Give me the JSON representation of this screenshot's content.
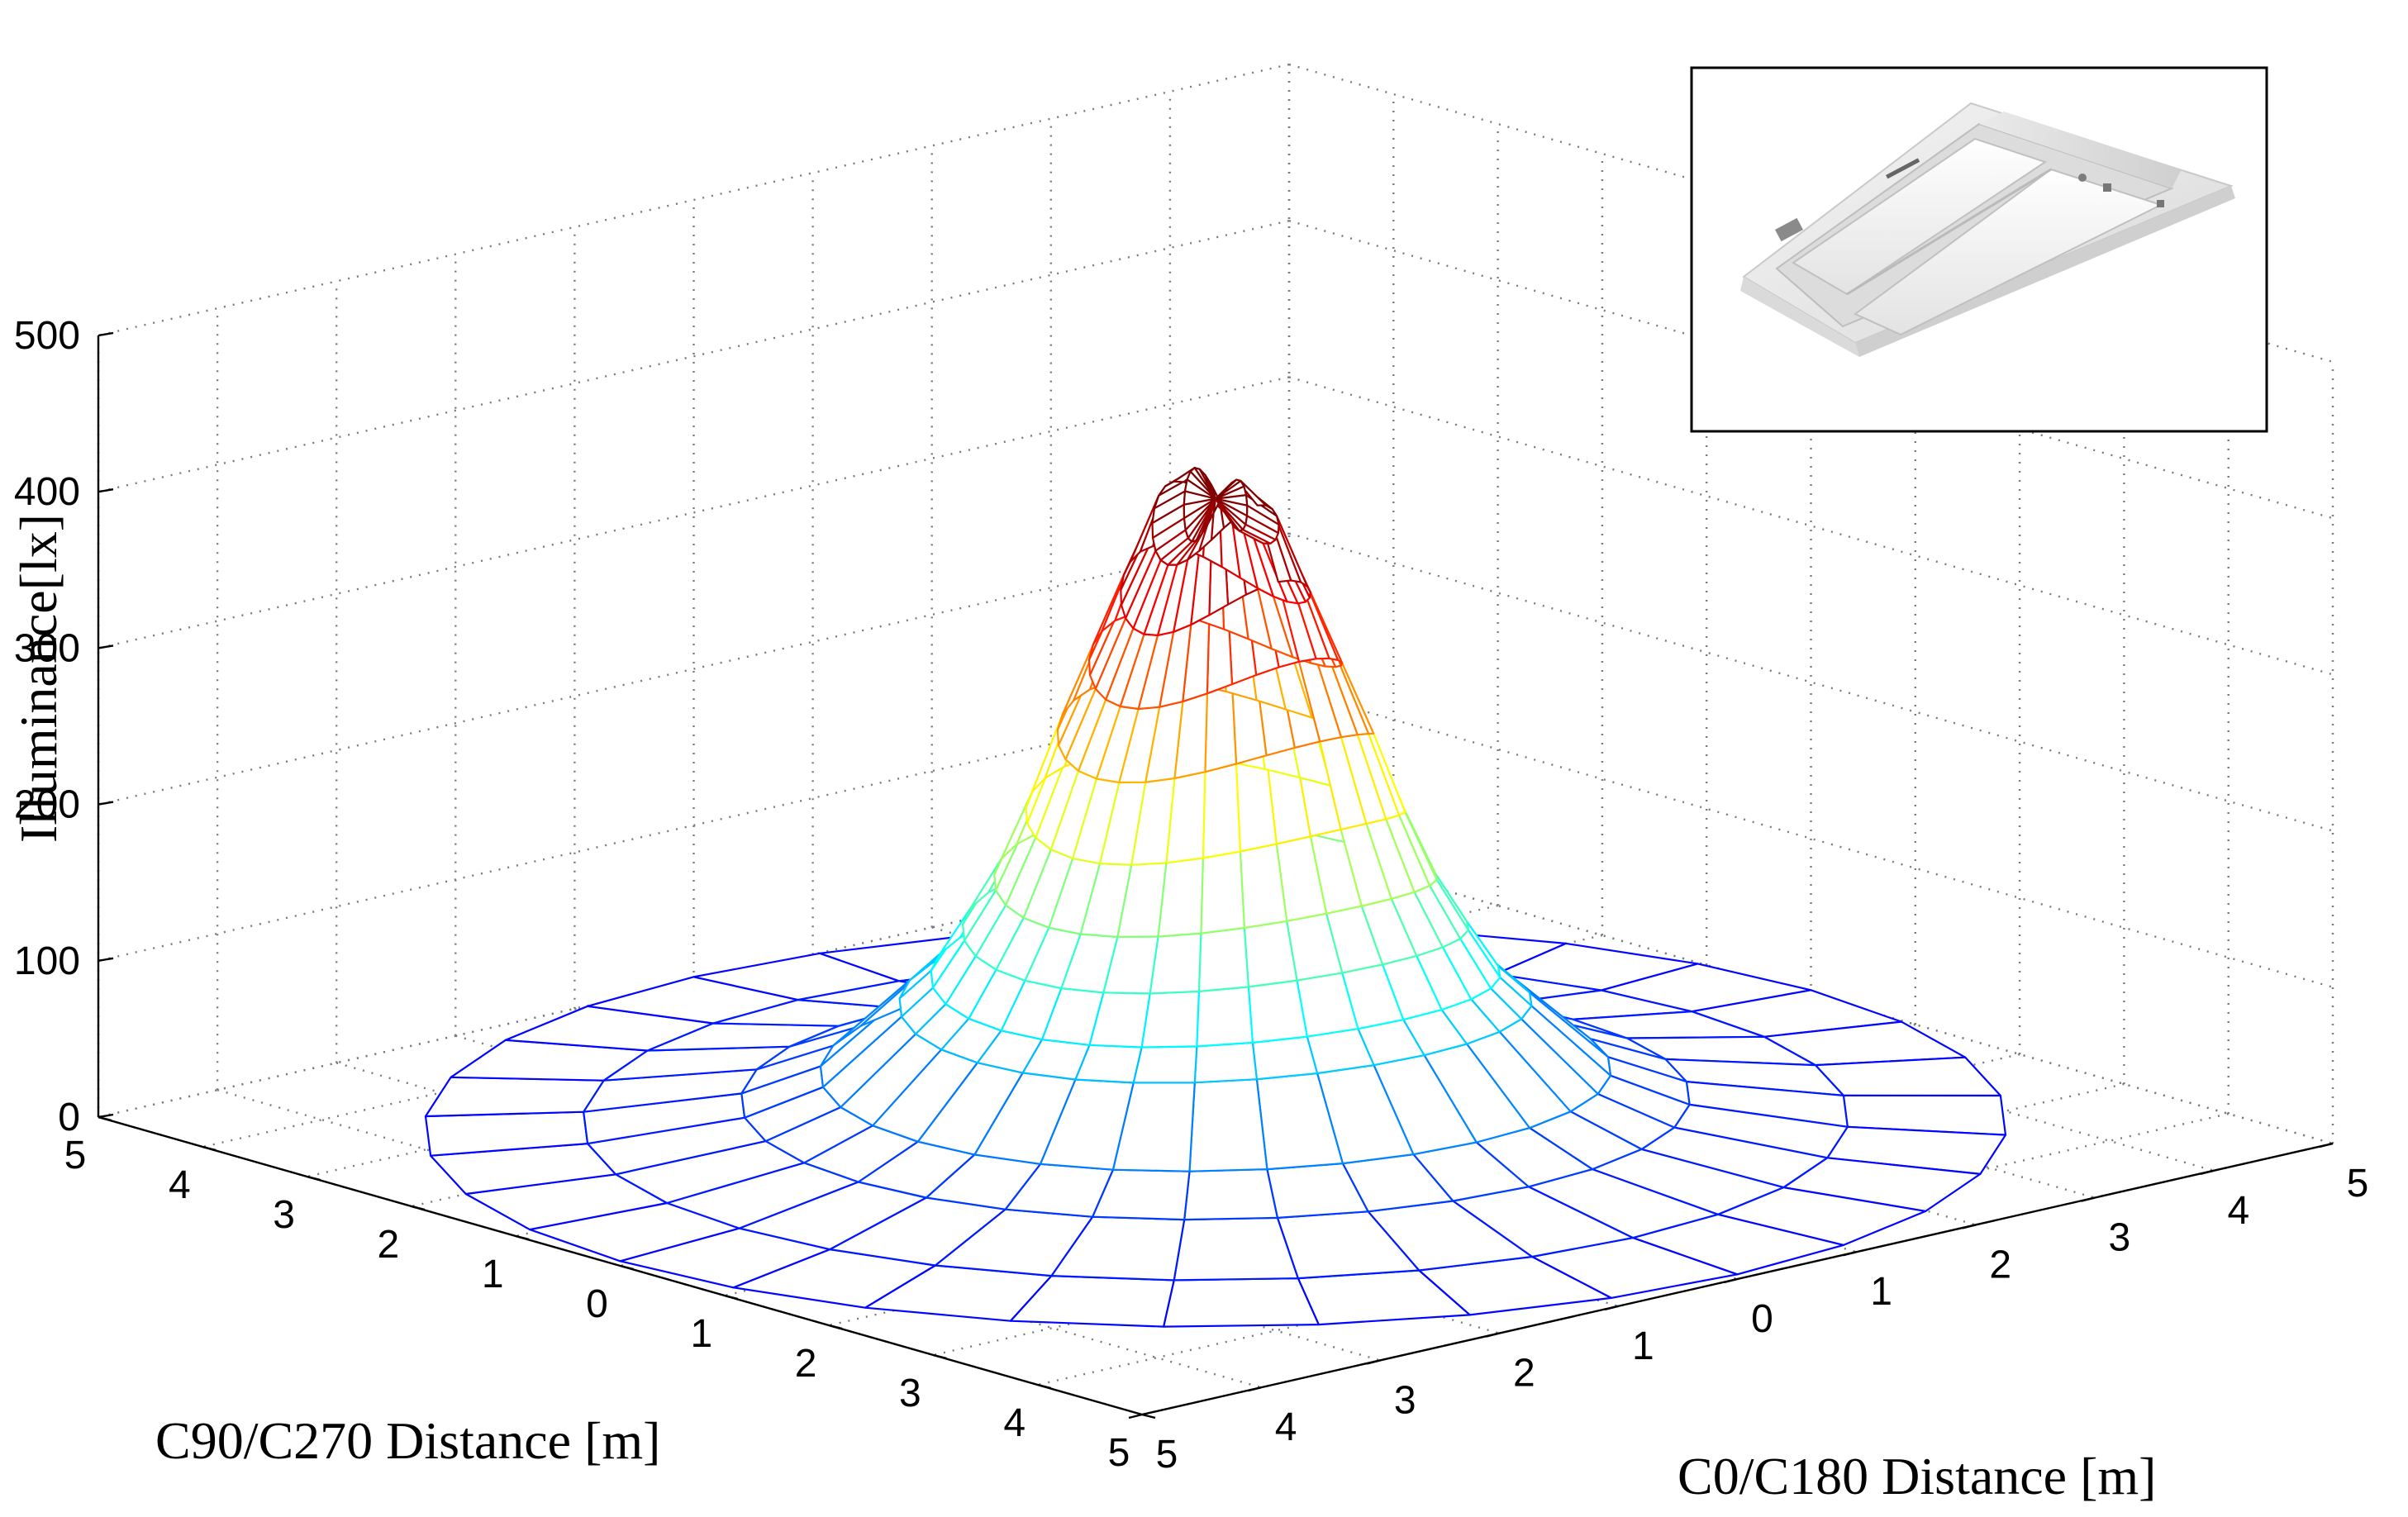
{
  "chart_data": {
    "type": "surface",
    "xlabel": "C0/C180 Distance [m]",
    "ylabel": "C90/C270 Distance [m]",
    "zlabel": "Illuminance[lx]",
    "x_ticks": [
      "5",
      "4",
      "3",
      "2",
      "1",
      "0",
      "1",
      "2",
      "3",
      "4",
      "5"
    ],
    "y_ticks": [
      "5",
      "4",
      "3",
      "2",
      "1",
      "0",
      "1",
      "2",
      "3",
      "4",
      "5"
    ],
    "z_ticks": [
      "0",
      "100",
      "200",
      "300",
      "400",
      "500"
    ],
    "xlim": [
      -5,
      5
    ],
    "ylim": [
      -5,
      5
    ],
    "zlim": [
      0,
      500
    ],
    "grid": true,
    "colormap": "jet",
    "surface": {
      "shape": "polar mesh",
      "radius_max": 5,
      "rings": [
        0,
        0.2,
        0.4,
        0.6,
        0.8,
        1.0,
        1.2,
        1.4,
        1.6,
        1.8,
        2.0,
        2.5,
        3.0,
        4.0,
        5.0
      ],
      "illuminance_at_rings": [
        404,
        400,
        388,
        345,
        300,
        255,
        205,
        162,
        130,
        100,
        82,
        38,
        20,
        7,
        3
      ]
    },
    "inset": {
      "content": "photo of recessed luminaire",
      "placement": "top-right"
    }
  }
}
